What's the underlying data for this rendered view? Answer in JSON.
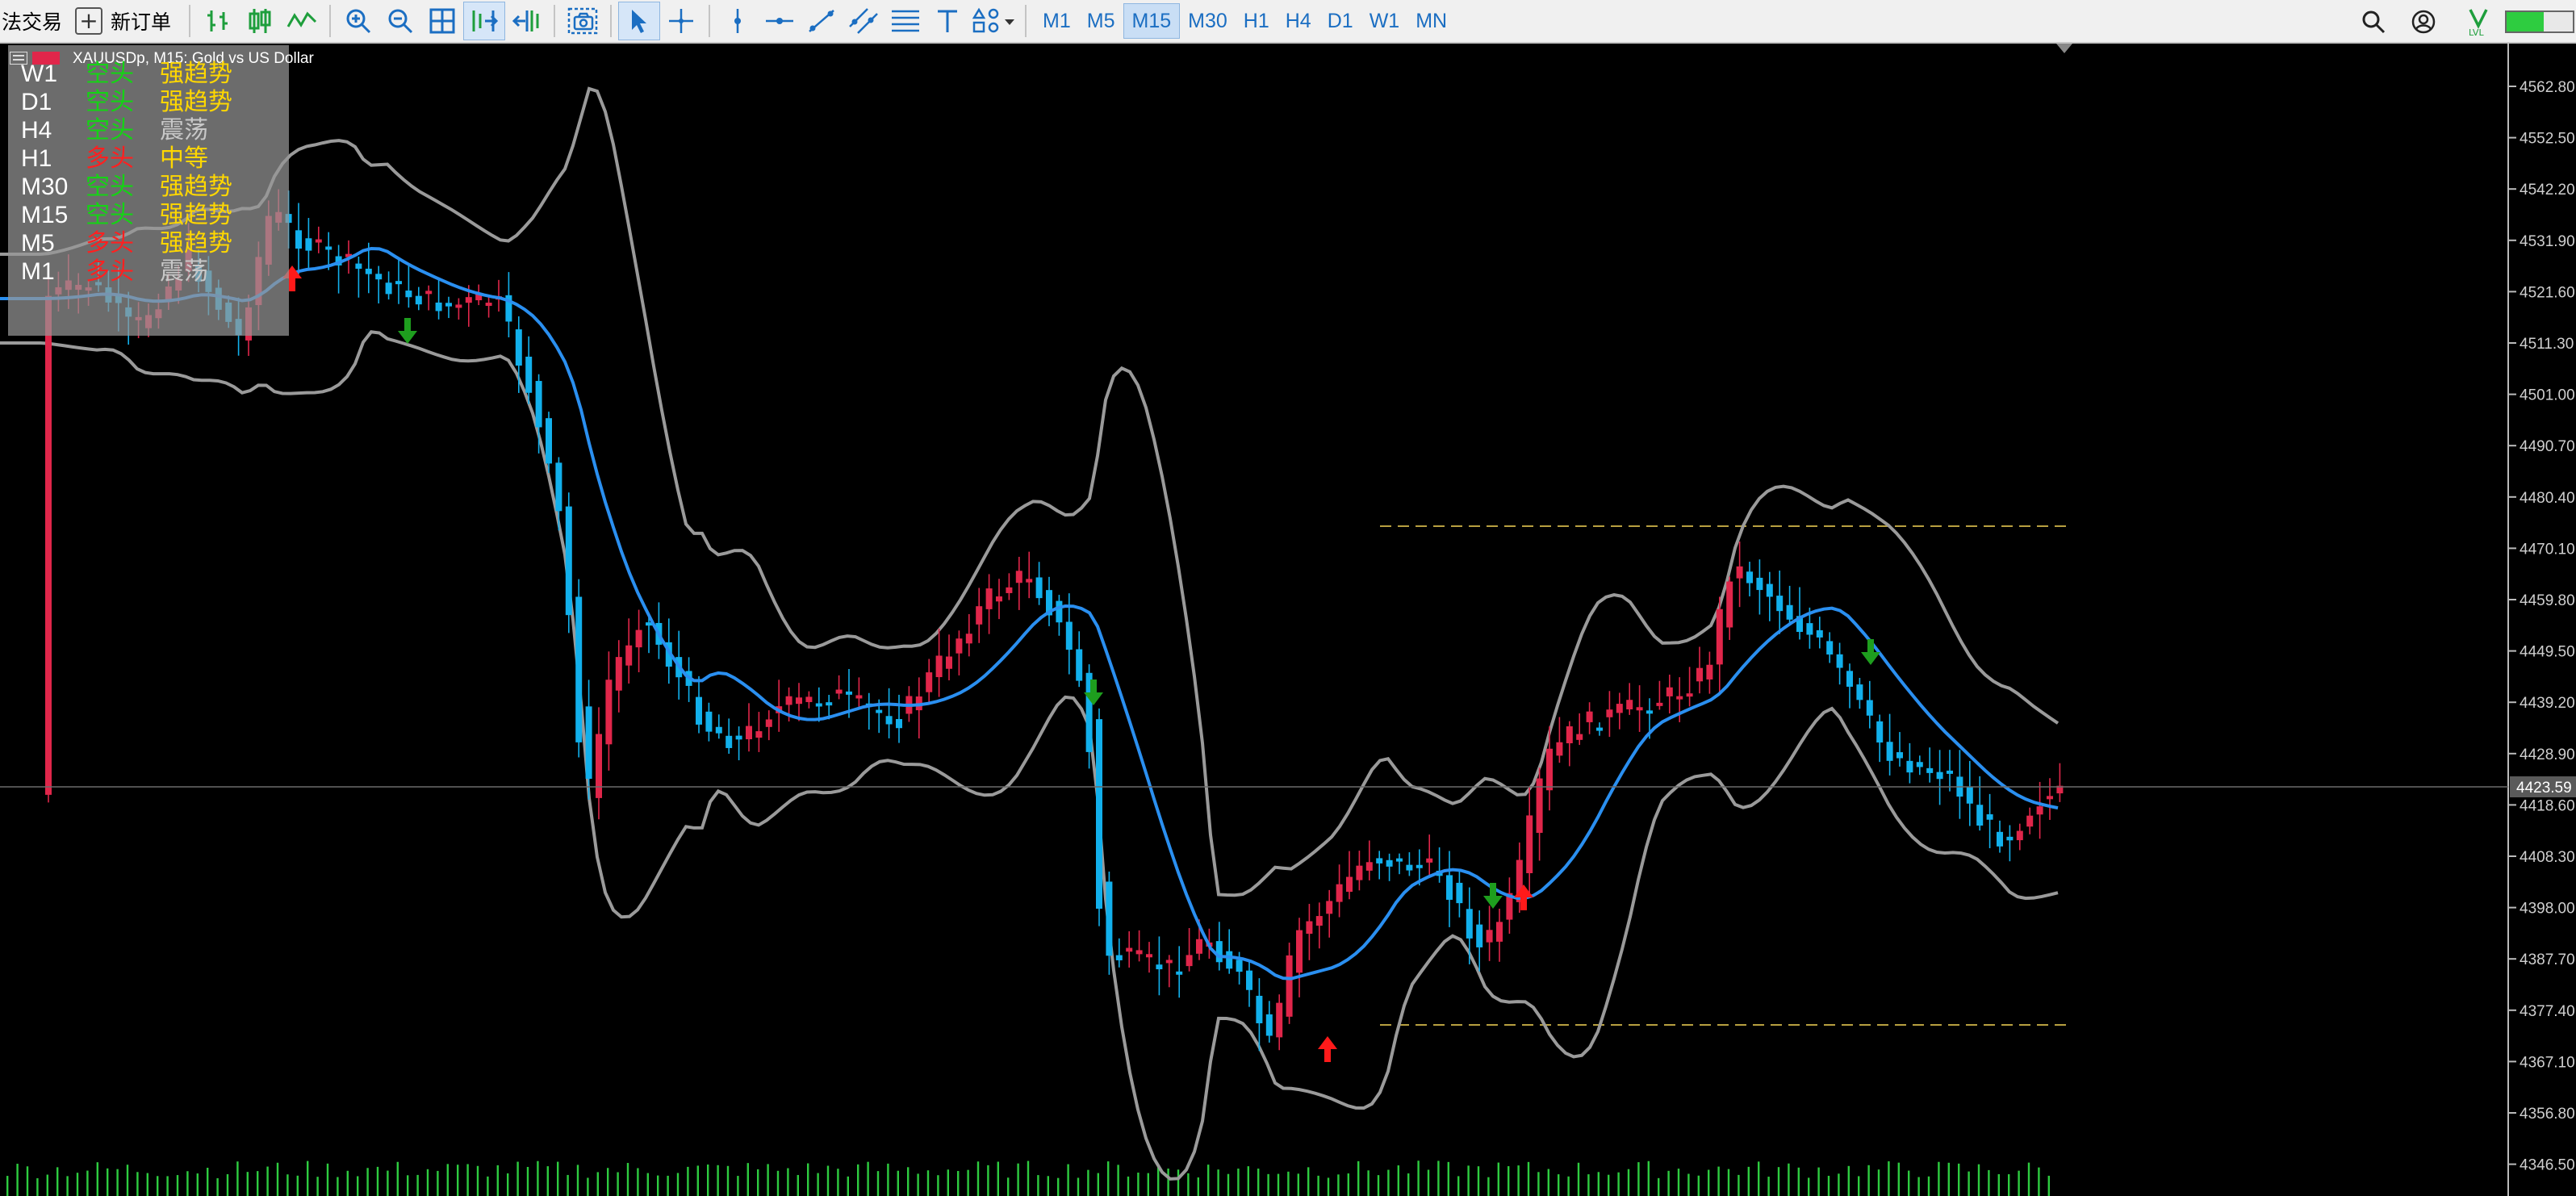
{
  "toolbar": {
    "algo_trading_label": "法交易",
    "new_order_label": "新订单",
    "timeframes": [
      "M1",
      "M5",
      "M15",
      "M30",
      "H1",
      "H4",
      "D1",
      "W1",
      "MN"
    ],
    "active_timeframe": "M15"
  },
  "chart": {
    "title": "XAUUSDp, M15:  Gold vs US Dollar",
    "current_price_label": "4423.59",
    "price_ticks": [
      "4562.80",
      "4552.50",
      "4542.20",
      "4531.90",
      "4521.60",
      "4511.30",
      "4501.00",
      "4490.70",
      "4480.40",
      "4470.10",
      "4459.80",
      "4449.50",
      "4439.20",
      "4428.90",
      "4418.60",
      "4408.30",
      "4398.00",
      "4387.70",
      "4377.40",
      "4367.10",
      "4356.80",
      "4346.50"
    ],
    "colors": {
      "background": "#000000",
      "bull_candle": "#e0264a",
      "bear_candle": "#12b0ec",
      "moving_average": "#2a8ff0",
      "bollinger_bands": "#9a9a9a",
      "volume": "#2ecc40",
      "range_lines": "#b8a040",
      "buy_arrow": "#ff1a1a",
      "sell_arrow": "#1e9e1e"
    }
  },
  "trend_panel": {
    "rows": [
      {
        "tf": "W1",
        "dir": "空头",
        "dir_color": "#14d414",
        "strength": "强趋势",
        "strength_color": "#ffd700"
      },
      {
        "tf": "D1",
        "dir": "空头",
        "dir_color": "#14d414",
        "strength": "强趋势",
        "strength_color": "#ffd700"
      },
      {
        "tf": "H4",
        "dir": "空头",
        "dir_color": "#14d414",
        "strength": "震荡",
        "strength_color": "#c8c8c8"
      },
      {
        "tf": "H1",
        "dir": "多头",
        "dir_color": "#ff2020",
        "strength": "中等",
        "strength_color": "#ffd700"
      },
      {
        "tf": "M30",
        "dir": "空头",
        "dir_color": "#14d414",
        "strength": "强趋势",
        "strength_color": "#ffd700"
      },
      {
        "tf": "M15",
        "dir": "空头",
        "dir_color": "#14d414",
        "strength": "强趋势",
        "strength_color": "#ffd700"
      },
      {
        "tf": "M5",
        "dir": "多头",
        "dir_color": "#ff2020",
        "strength": "强趋势",
        "strength_color": "#ffd700"
      },
      {
        "tf": "M1",
        "dir": "多头",
        "dir_color": "#ff2020",
        "strength": "震荡",
        "strength_color": "#c8c8c8"
      }
    ]
  }
}
